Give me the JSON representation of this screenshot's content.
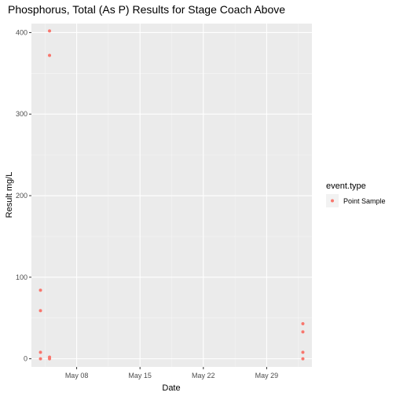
{
  "chart_data": {
    "type": "scatter",
    "title": "Phosphorus, Total (As P) Results for Stage Coach Above",
    "xlabel": "Date",
    "ylabel": "Result mg/L",
    "x_ticks": [
      "May 08",
      "May 15",
      "May 22",
      "May 29"
    ],
    "x_tick_dates": [
      "2020-05-08",
      "2020-05-15",
      "2020-05-22",
      "2020-05-29"
    ],
    "y_ticks": [
      0,
      100,
      200,
      300,
      400
    ],
    "xlim": [
      "2020-05-03",
      "2020-06-03"
    ],
    "ylim": [
      -10,
      411
    ],
    "grid": true,
    "legend": {
      "title": "event.type",
      "position": "right",
      "entries": [
        "Point Sample"
      ]
    },
    "series": [
      {
        "name": "Point Sample",
        "color": "#F8766D",
        "points": [
          {
            "x": "2020-05-04",
            "y": 84
          },
          {
            "x": "2020-05-04",
            "y": 59
          },
          {
            "x": "2020-05-04",
            "y": 8
          },
          {
            "x": "2020-05-04",
            "y": 0
          },
          {
            "x": "2020-05-05",
            "y": 402
          },
          {
            "x": "2020-05-05",
            "y": 372
          },
          {
            "x": "2020-05-05",
            "y": 2
          },
          {
            "x": "2020-05-05",
            "y": 0
          },
          {
            "x": "2020-06-02",
            "y": 43
          },
          {
            "x": "2020-06-02",
            "y": 33
          },
          {
            "x": "2020-06-02",
            "y": 8
          },
          {
            "x": "2020-06-02",
            "y": 0
          }
        ]
      }
    ]
  }
}
